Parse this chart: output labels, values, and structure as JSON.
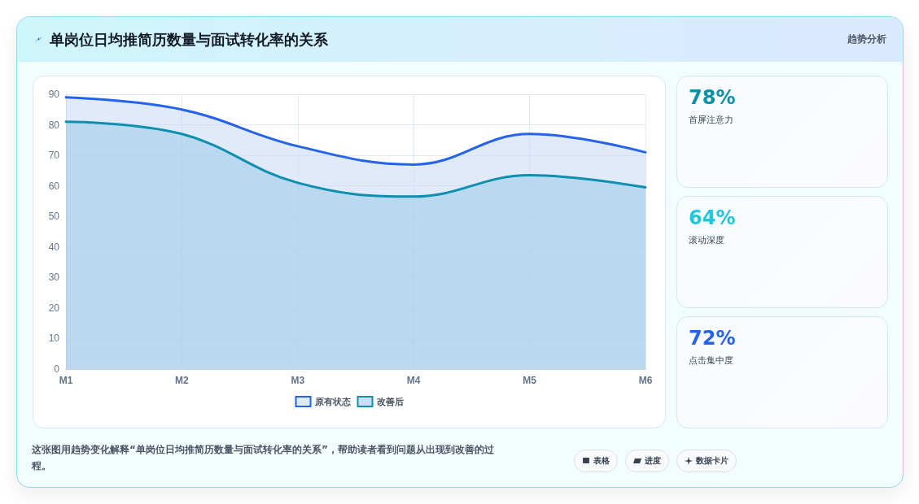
{
  "chart_data": {
    "type": "area",
    "title": "单岗位日均推简历数量与面试转化率的关系",
    "categories": [
      "M1",
      "M2",
      "M3",
      "M4",
      "M5",
      "M6"
    ],
    "series": [
      {
        "name": "原有状态",
        "color": "#2563eb",
        "values": [
          89,
          85,
          73,
          67,
          77,
          71
        ]
      },
      {
        "name": "改善后",
        "color": "#0e8fb0",
        "values": [
          81,
          77,
          61,
          56.5,
          63.5,
          59.5
        ]
      }
    ],
    "ylim": [
      0,
      90
    ],
    "yticks": [
      0,
      10,
      20,
      30,
      40,
      50,
      60,
      70,
      80,
      90
    ],
    "grid": true,
    "legend": "bottom",
    "marker": "none",
    "line_style": "solid",
    "annotations": [
      "趋势分析",
      "78%",
      "首屏注意力",
      "64%",
      "滚动深度",
      "72%",
      "点击集中度",
      "这张图用趋势变化解释“单岗位日均推简历数量与面试转化率的关系”，帮助读者看到问题从出现到改善的过程。",
      "表格",
      "进度",
      "数据卡片"
    ]
  }
}
